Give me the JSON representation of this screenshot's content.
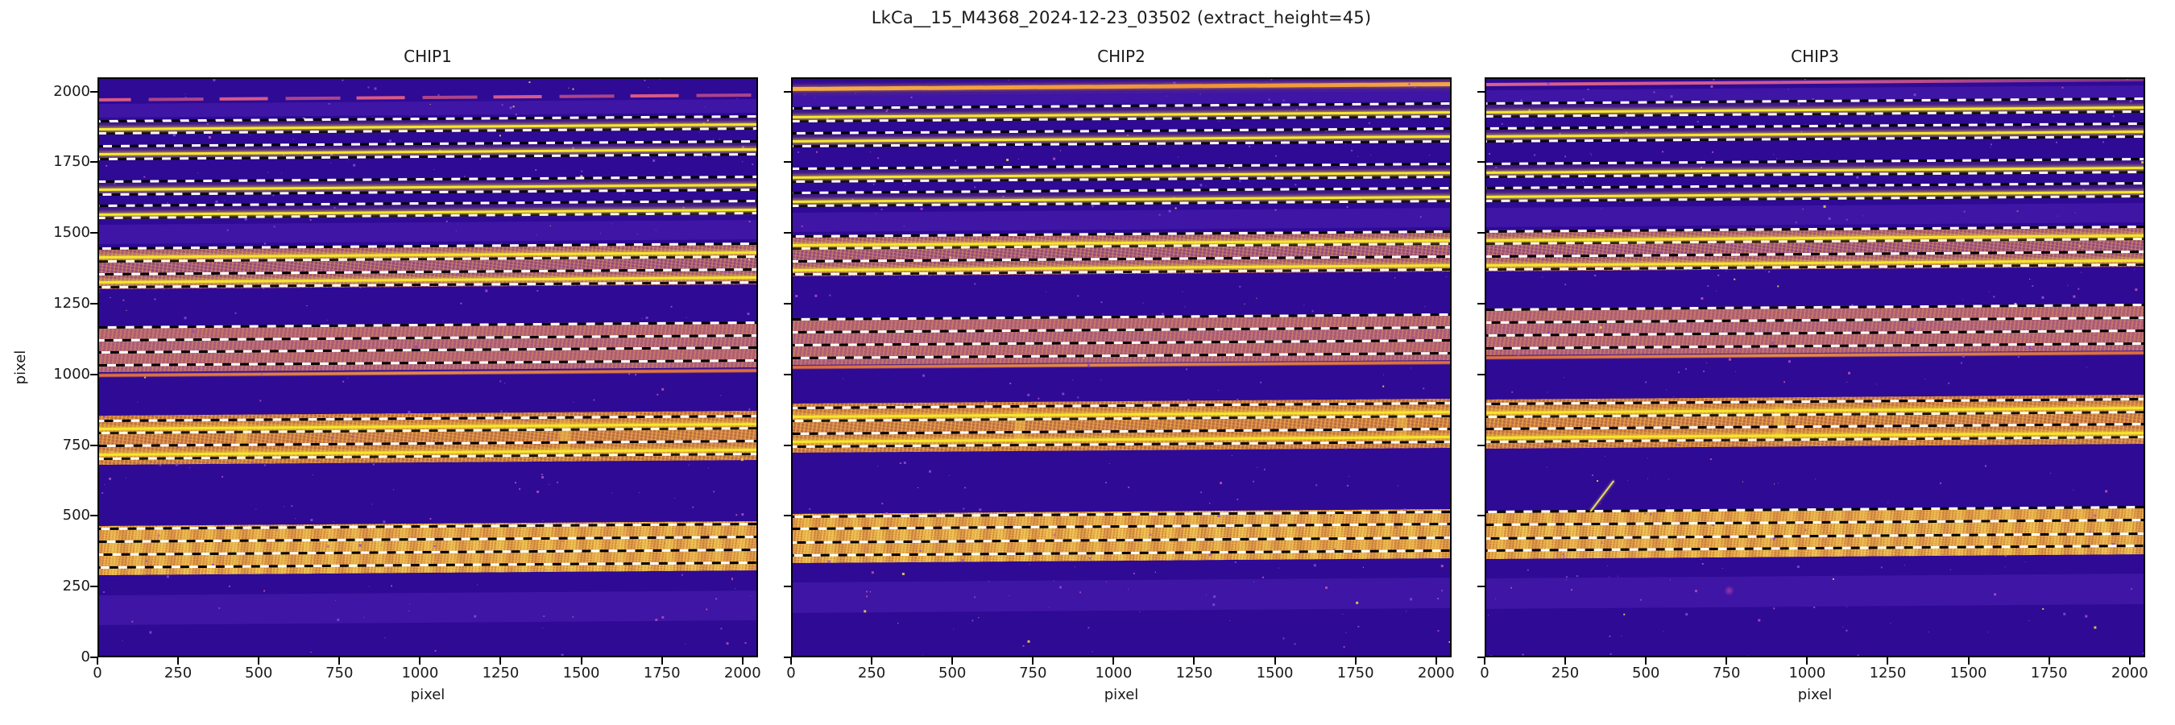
{
  "figure": {
    "suptitle": "LkCa__15_M4368_2024-12-23_03502  (extract_height=45)",
    "background": "#ffffff"
  },
  "palette": {
    "frame": "#000000",
    "text": "#1a1a1a",
    "bg_deep": "#2e0a95",
    "bg_faint_band": "#6834cc",
    "band_mauve": "#96497f",
    "band_soft": "#a65a78",
    "band_orange": "#c06a42",
    "band_bright": "#d4873c",
    "core_yellow": "#f5e62a",
    "edge_orange": "#df6f3a",
    "line_pink": "#e25d86",
    "line_orange": "#f09c42",
    "dash_black": "#000000",
    "dash_white": "#ffffff"
  },
  "chart_data": {
    "type": "heatmap",
    "title": "LkCa__15_M4368_2024-12-23_03502  (extract_height=45)",
    "colormap": "plasma",
    "extract_height": 45,
    "xlabel": "pixel",
    "ylabel": "pixel",
    "x_range": [
      0,
      2048
    ],
    "y_range": [
      0,
      2050
    ],
    "x_ticks": [
      0,
      250,
      500,
      750,
      1000,
      1250,
      1500,
      1750,
      2000
    ],
    "y_ticks": [
      0,
      250,
      500,
      750,
      1000,
      1250,
      1500,
      1750,
      2000
    ],
    "panels": [
      {
        "title": "CHIP1",
        "topline": {
          "y": 1978,
          "style": "broken"
        },
        "orders": [
          {
            "trace": 1882,
            "core": 1874
          },
          {
            "trace": 1793,
            "core": 1786
          },
          {
            "trace": 1668,
            "core": 1660
          },
          {
            "trace": 1583,
            "core": 1574
          },
          {
            "trace": 1430,
            "core": 1421
          },
          {
            "trace": 1340,
            "core": 1333
          },
          {
            "trace": 1152,
            "core": null
          },
          {
            "trace": 1063,
            "core": null
          },
          {
            "trace": 823,
            "core": 816
          },
          {
            "trace": 734,
            "core": 726
          },
          {
            "trace": 441,
            "core": null
          },
          {
            "trace": 349,
            "core": null
          }
        ],
        "bands": [
          {
            "y0": 1310,
            "y1": 1455,
            "type": "mauve"
          },
          {
            "y0": 1016,
            "y1": 1180,
            "type": "soft"
          },
          {
            "y0": 688,
            "y1": 862,
            "type": "orange"
          },
          {
            "y0": 298,
            "y1": 472,
            "type": "bright"
          }
        ],
        "faint_bands": [
          [
            1916,
            1964
          ],
          [
            1470,
            1538
          ],
          [
            122,
            228
          ]
        ],
        "edge_lines": [
          1006
        ],
        "vertical_streaks": [
          {
            "x": 1446,
            "y0": 690,
            "y1": 858
          },
          {
            "x": 448,
            "y0": 690,
            "y1": 858
          }
        ],
        "diagonal_streaks": [],
        "blobs": []
      },
      {
        "title": "CHIP2",
        "topline": {
          "y": 2020,
          "style": "solid_orange"
        },
        "orders": [
          {
            "trace": 1927,
            "core": 1919
          },
          {
            "trace": 1838,
            "core": 1831
          },
          {
            "trace": 1713,
            "core": 1705
          },
          {
            "trace": 1628,
            "core": 1619
          },
          {
            "trace": 1475,
            "core": 1466
          },
          {
            "trace": 1385,
            "core": 1378
          },
          {
            "trace": 1180,
            "core": null
          },
          {
            "trace": 1090,
            "core": null
          },
          {
            "trace": 866,
            "core": 859
          },
          {
            "trace": 777,
            "core": 769
          },
          {
            "trace": 484,
            "core": null
          },
          {
            "trace": 392,
            "core": null
          }
        ],
        "bands": [
          {
            "y0": 1355,
            "y1": 1500,
            "type": "mauve"
          },
          {
            "y0": 1043,
            "y1": 1208,
            "type": "soft"
          },
          {
            "y0": 731,
            "y1": 905,
            "type": "orange"
          },
          {
            "y0": 341,
            "y1": 515,
            "type": "bright"
          }
        ],
        "faint_bands": [
          [
            1955,
            1998
          ],
          [
            1513,
            1580
          ],
          [
            165,
            272
          ]
        ],
        "edge_lines": [
          1033
        ],
        "vertical_streaks": [
          {
            "x": 707,
            "y0": 733,
            "y1": 900
          },
          {
            "x": 1890,
            "y0": 733,
            "y1": 900
          }
        ],
        "diagonal_streaks": [],
        "blobs": []
      },
      {
        "title": "CHIP3",
        "topline": {
          "y": 2034,
          "style": "solid_pink"
        },
        "orders": [
          {
            "trace": 1944,
            "core": 1936
          },
          {
            "trace": 1856,
            "core": 1849
          },
          {
            "trace": 1730,
            "core": 1722
          },
          {
            "trace": 1645,
            "core": 1636
          },
          {
            "trace": 1492,
            "core": 1483
          },
          {
            "trace": 1402,
            "core": 1395
          },
          {
            "trace": 1214,
            "core": null
          },
          {
            "trace": 1124,
            "core": null
          },
          {
            "trace": 881,
            "core": 874
          },
          {
            "trace": 792,
            "core": 784
          },
          {
            "trace": 499,
            "core": null
          },
          {
            "trace": 407,
            "core": null
          }
        ],
        "bands": [
          {
            "y0": 1372,
            "y1": 1517,
            "type": "mauve"
          },
          {
            "y0": 1077,
            "y1": 1242,
            "type": "soft"
          },
          {
            "y0": 746,
            "y1": 920,
            "type": "orange"
          },
          {
            "y0": 356,
            "y1": 522,
            "type": "bright"
          }
        ],
        "faint_bands": [
          [
            1970,
            2012
          ],
          [
            1530,
            1597
          ],
          [
            180,
            287
          ]
        ],
        "edge_lines": [
          1067
        ],
        "vertical_streaks": [
          {
            "x": 912,
            "y0": 748,
            "y1": 915
          }
        ],
        "diagonal_streaks": [
          {
            "x0": 325,
            "y0": 525,
            "x1": 398,
            "y1": 633
          }
        ],
        "blobs": [
          {
            "x": 752,
            "y": 240
          }
        ]
      }
    ]
  }
}
